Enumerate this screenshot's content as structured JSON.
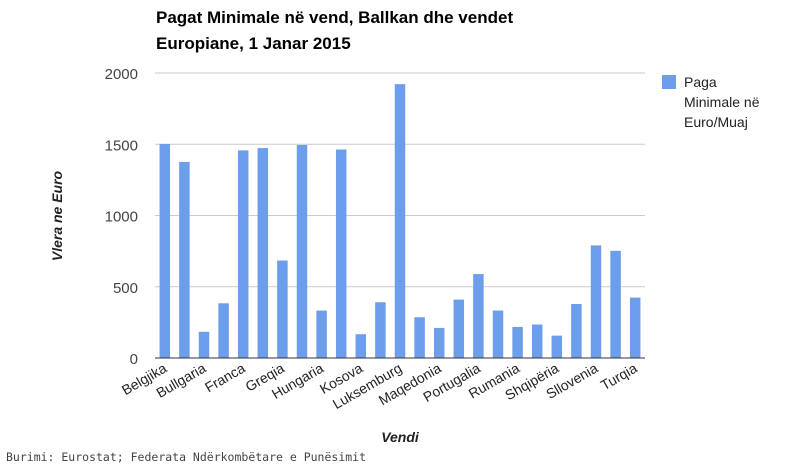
{
  "chart_data": {
    "type": "bar",
    "title_line1": "Pagat Minimale në vend, Ballkan dhe vendet",
    "title_line2": "Europiane, 1 Janar 2015",
    "xlabel": "Vendi",
    "ylabel": "Vlera ne Euro",
    "ylim": [
      0,
      2000
    ],
    "yticks": [
      "0",
      "500",
      "1000",
      "1500",
      "2000"
    ],
    "grid": true,
    "legend_position": "right",
    "series": [
      {
        "name": "Paga Minimale në Euro/Muaj",
        "legend_lines": [
          "Paga",
          "Minimale në",
          "Euro/Muaj"
        ],
        "color": "#6d9eeb",
        "values": [
          1502,
          1376,
          184,
          384,
          1457,
          1473,
          684,
          1495,
          333,
          1463,
          167,
          391,
          1922,
          286,
          211,
          410,
          589,
          333,
          218,
          235,
          157,
          379,
          790,
          752,
          424
        ]
      }
    ],
    "visible_category_labels": [
      "Belgjika",
      "Bullgaria",
      "Franca",
      "Greqia",
      "Hungaria",
      "Kosova",
      "Luksemburg",
      "Maqedonia",
      "Portugalia",
      "Rumania",
      "Shqipëria",
      "Sllovenia",
      "Turqia"
    ],
    "source_note": "Burimi: Eurostat; Federata Ndërkombëtare e Punësimit"
  }
}
